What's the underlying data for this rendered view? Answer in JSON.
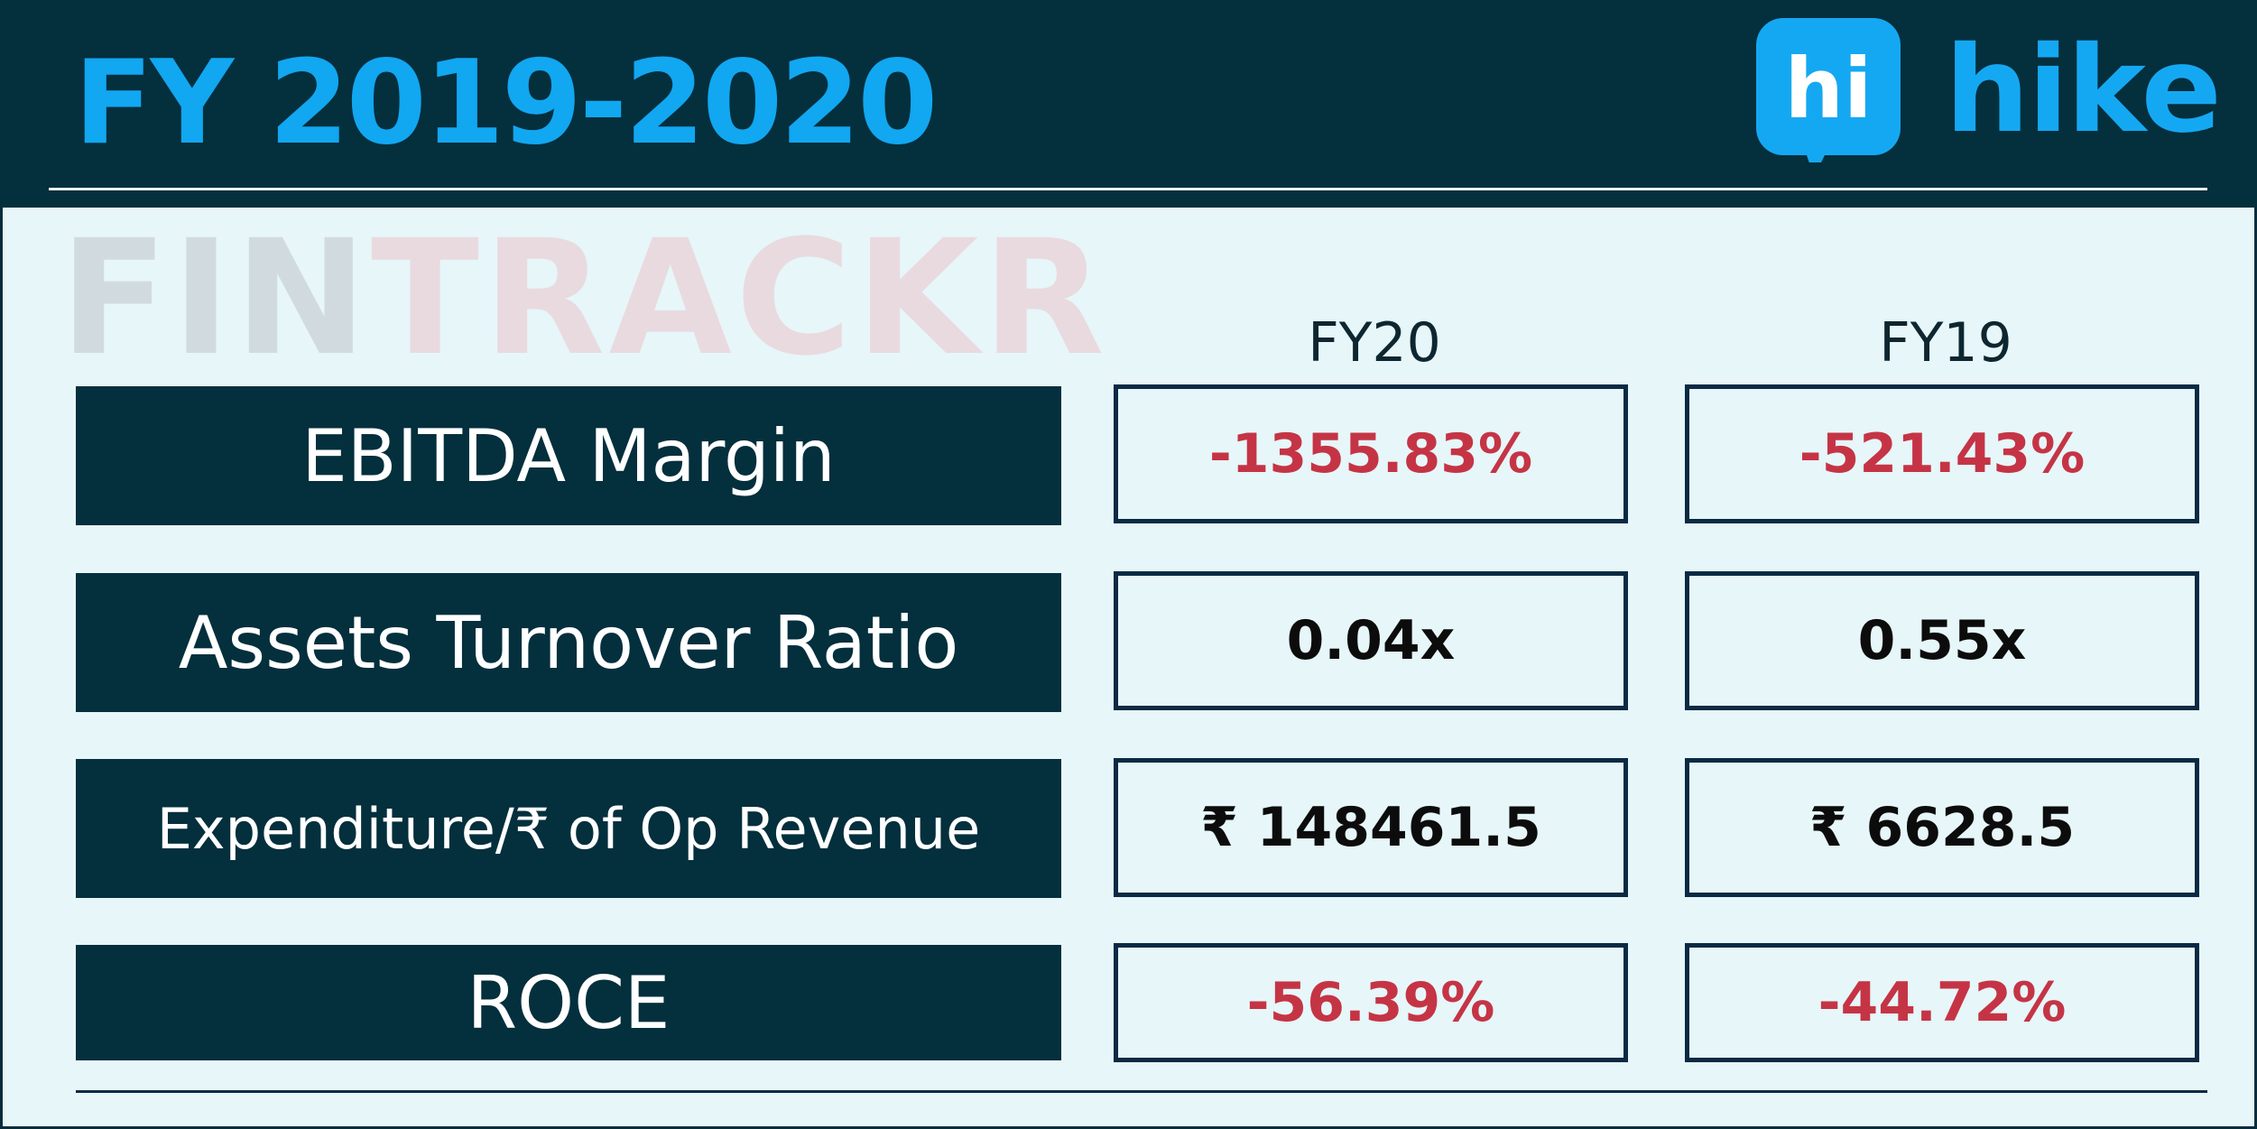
{
  "header": {
    "title": "FY 2019-2020",
    "brand_badge_text": "hi",
    "brand_word": "hike"
  },
  "watermark": {
    "part1": "FIN",
    "part2": "TRACKR"
  },
  "columns": [
    "FY20",
    "FY19"
  ],
  "rows": [
    {
      "label": "EBITDA Margin",
      "fy20": "-1355.83%",
      "fy19": "-521.43%",
      "negative": true
    },
    {
      "label": "Assets Turnover Ratio",
      "fy20": "0.04x",
      "fy19": "0.55x",
      "negative": false
    },
    {
      "label": "Expenditure/₹ of Op Revenue",
      "fy20": "₹ 148461.5",
      "fy19": "₹ 6628.5",
      "negative": false
    },
    {
      "label": "ROCE",
      "fy20": "-56.39%",
      "fy19": "-44.72%",
      "negative": true
    }
  ],
  "colors": {
    "header_bg": "#042f3d",
    "brand_blue": "#11a7f1",
    "page_bg": "#e6f6f9",
    "negative_value": "#c53445",
    "positive_value": "#0c0c0c"
  },
  "icons": [
    "hike-chat-bubble-icon"
  ]
}
